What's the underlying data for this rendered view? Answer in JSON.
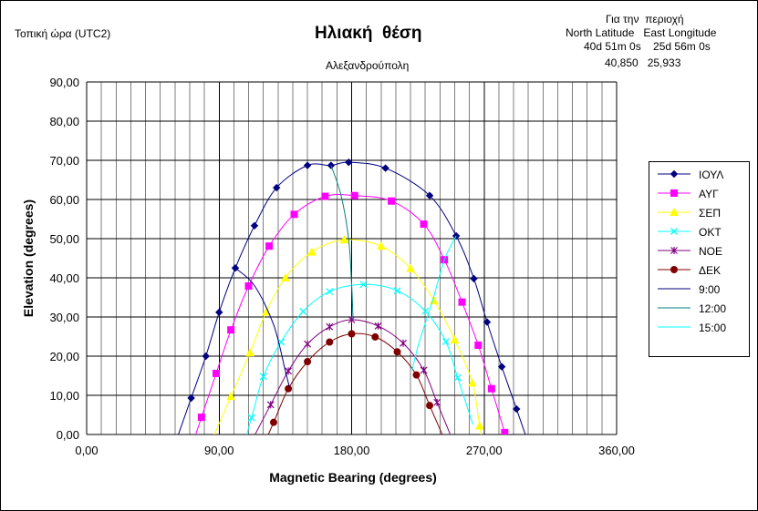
{
  "header": {
    "local_time": "Τοπική ώρα (UTC2)",
    "title": "Ηλιακή  θέση",
    "subtitle": "Αλεξανδρούπολη",
    "region": {
      "line1": "Για την  περιοχή",
      "line2": "North Latitude   East Longitude",
      "line3": "40d 51m 0s    25d 56m 0s",
      "line4": "40,850   25,933"
    }
  },
  "chart_data": {
    "type": "scatter",
    "xlabel": "Magnetic Bearing (degrees)",
    "ylabel": "Elevation (degrees)",
    "xlim": [
      0,
      360
    ],
    "ylim": [
      0,
      90
    ],
    "x_ticks": [
      "0,00",
      "90,00",
      "180,00",
      "270,00",
      "360,00"
    ],
    "y_ticks": [
      "0,00",
      "10,00",
      "20,00",
      "30,00",
      "40,00",
      "50,00",
      "60,00",
      "70,00",
      "80,00",
      "90,00"
    ],
    "grid": true,
    "legend_position": "right",
    "series": [
      {
        "name": "ΙΟΥΛ",
        "color": "#000080",
        "marker": "diamond",
        "x": [
          71,
          81,
          90,
          101,
          114,
          129,
          150,
          166,
          178,
          203,
          233,
          251,
          263,
          272,
          282,
          292
        ],
        "y": [
          9.3,
          20,
          31.2,
          42.5,
          53.3,
          63,
          68.7,
          68.7,
          69.5,
          68,
          61,
          50.7,
          39.8,
          28.7,
          17.3,
          6.5
        ]
      },
      {
        "name": "ΑΥΓ",
        "color": "#ff00ff",
        "marker": "square",
        "x": [
          78,
          88,
          98,
          110,
          124,
          141,
          162,
          182,
          207,
          229,
          243,
          255,
          266,
          275,
          284
        ],
        "y": [
          4.4,
          15.6,
          26.7,
          37.9,
          48.1,
          56.2,
          60.8,
          61,
          59.6,
          53.7,
          44.6,
          33.8,
          22.8,
          11.7,
          0.5
        ]
      },
      {
        "name": "ΣΕΠ",
        "color": "#ffff00",
        "marker": "triangle",
        "x": [
          98,
          111,
          122,
          135,
          153,
          175,
          200,
          220,
          236,
          250,
          262,
          267
        ],
        "y": [
          9.7,
          20.9,
          31.3,
          40,
          46.6,
          49.7,
          48.1,
          42.4,
          34.2,
          24.2,
          13.2,
          2.2
        ]
      },
      {
        "name": "ΟΚΤ",
        "color": "#00ffff",
        "marker": "x",
        "x": [
          112,
          120,
          132,
          147,
          165,
          188,
          211,
          230,
          244,
          252
        ],
        "y": [
          4.3,
          14.8,
          23.6,
          31.4,
          36.5,
          38.3,
          36.7,
          31.5,
          23.7,
          14.5
        ]
      },
      {
        "name": "ΝΟΕ",
        "color": "#800080",
        "marker": "star",
        "x": [
          125,
          137,
          150,
          165,
          180,
          198,
          215,
          229,
          238
        ],
        "y": [
          7.6,
          16.2,
          23.1,
          27.5,
          29.3,
          27.7,
          23.3,
          16.4,
          8.2
        ]
      },
      {
        "name": "ΔΕΚ",
        "color": "#800000",
        "marker": "circle",
        "x": [
          127,
          137,
          150,
          165,
          180,
          196,
          211,
          224,
          233
        ],
        "y": [
          3.1,
          11.7,
          18.6,
          23.6,
          25.7,
          24.9,
          21.1,
          15.2,
          7.4
        ]
      },
      {
        "name": "9:00",
        "color": "#000080",
        "marker": "none",
        "x": [
          101,
          114,
          127,
          135,
          138
        ],
        "y": [
          42.5,
          38,
          28,
          16.2,
          11.7
        ]
      },
      {
        "name": "12:00",
        "color": "#008080",
        "marker": "none",
        "x": [
          166,
          173,
          178,
          180,
          181
        ],
        "y": [
          68.7,
          60.8,
          49.7,
          38.3,
          29.3
        ]
      },
      {
        "name": "15:00",
        "color": "#00ffff",
        "marker": "none",
        "x": [
          251,
          243,
          235,
          226,
          221
        ],
        "y": [
          50.7,
          44.6,
          34.2,
          23.7,
          16.4
        ]
      }
    ]
  }
}
